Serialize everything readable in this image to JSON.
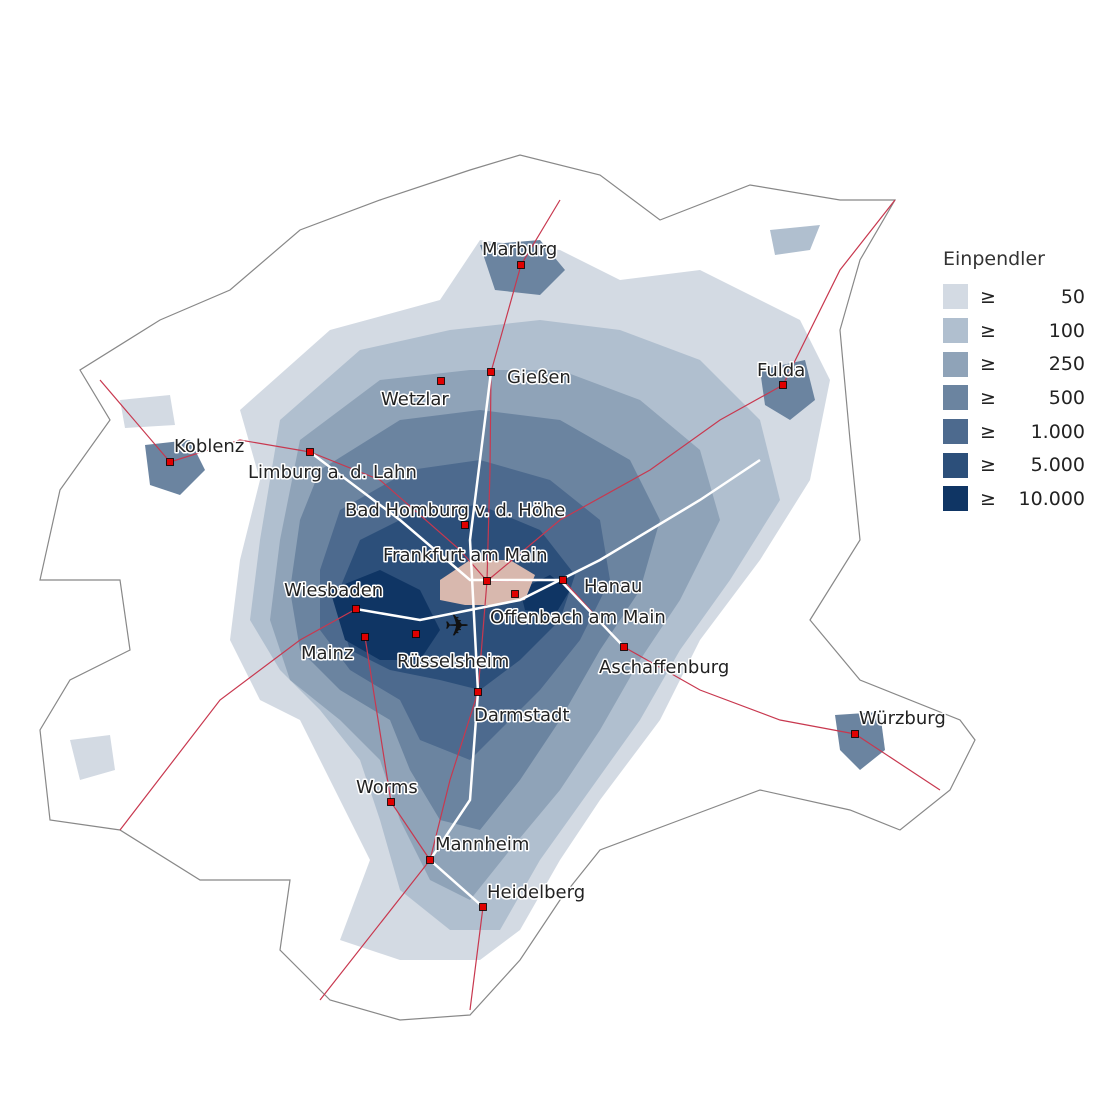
{
  "legend": {
    "title": "Einpendler",
    "symbol": "≥",
    "classes": [
      {
        "value": "50",
        "color": "#d3dae3"
      },
      {
        "value": "100",
        "color": "#b0bfcf"
      },
      {
        "value": "250",
        "color": "#8fa3b8"
      },
      {
        "value": "500",
        "color": "#6b84a0"
      },
      {
        "value": "1.000",
        "color": "#4d6a8e"
      },
      {
        "value": "5.000",
        "color": "#2c4f7a"
      },
      {
        "value": "10.000",
        "color": "#0f3564"
      }
    ]
  },
  "colors": {
    "destination": "#d8b8ae",
    "city_marker": "#e00000",
    "rail": "#c8384f",
    "motorway": "#ffffff",
    "borders": "#9a9a9a"
  },
  "airport_icon": "airplane-icon",
  "cities": [
    "Marburg",
    "Gießen",
    "Wetzlar",
    "Fulda",
    "Koblenz",
    "Limburg a. d. Lahn",
    "Bad Homburg v. d. Höhe",
    "Frankfurt am Main",
    "Hanau",
    "Wiesbaden",
    "Offenbach am Main",
    "Mainz",
    "Rüsselsheim",
    "Aschaffenburg",
    "Darmstadt",
    "Würzburg",
    "Worms",
    "Mannheim",
    "Heidelberg"
  ]
}
